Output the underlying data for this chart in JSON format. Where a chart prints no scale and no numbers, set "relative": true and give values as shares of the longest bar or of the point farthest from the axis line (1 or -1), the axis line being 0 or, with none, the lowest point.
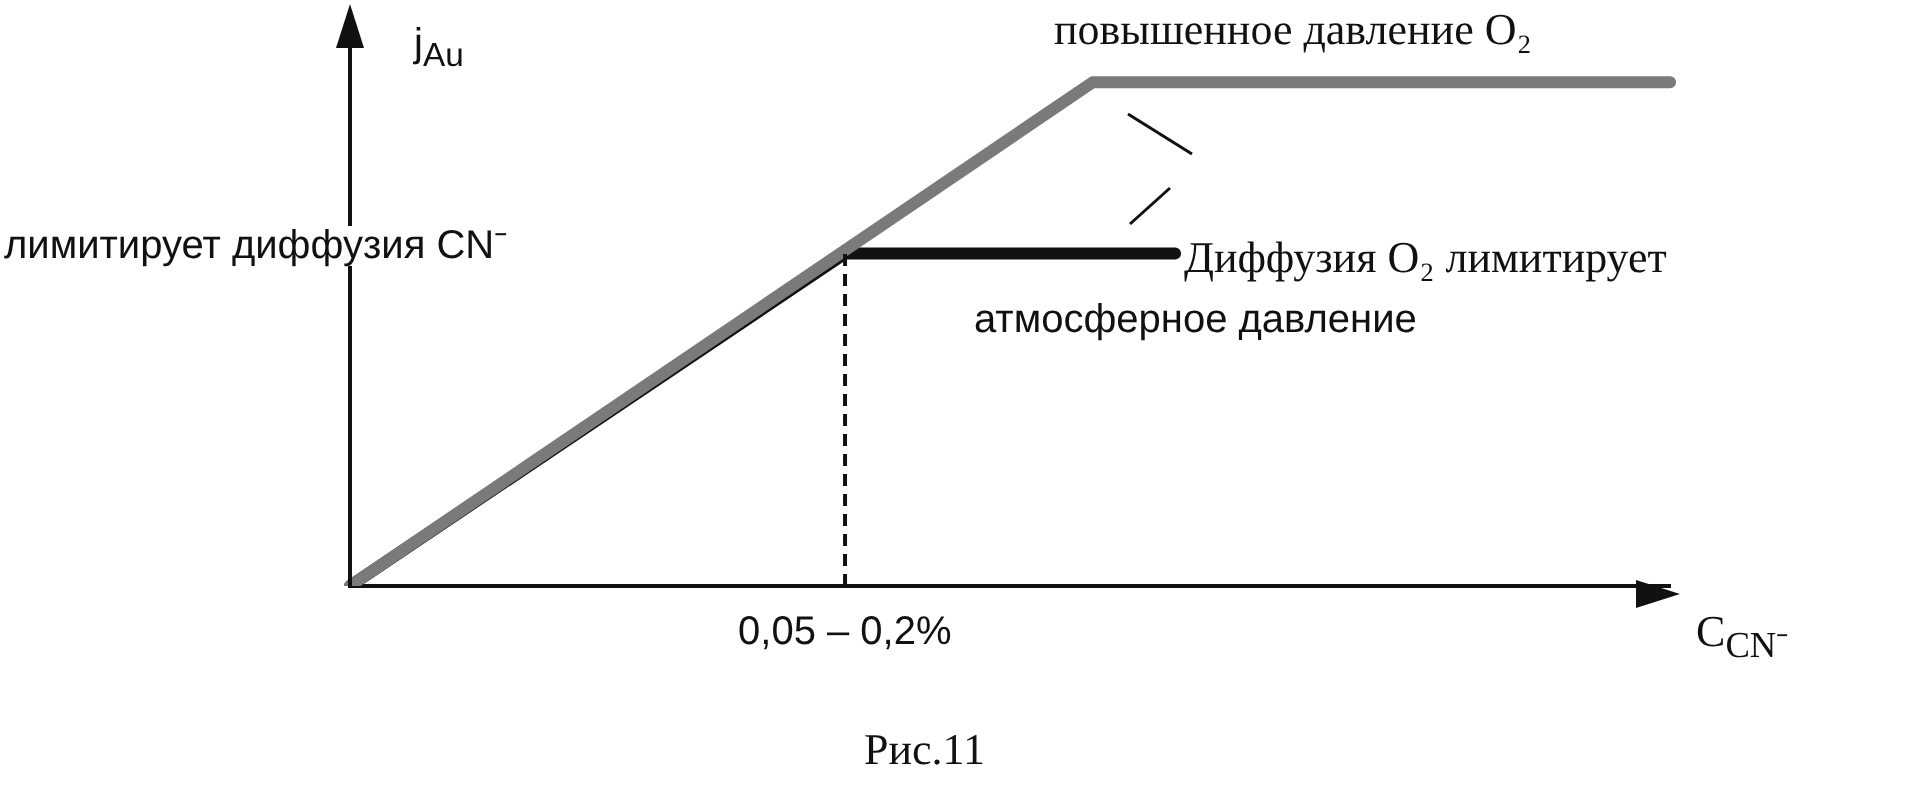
{
  "chart_data": {
    "type": "line",
    "relative": true,
    "xlabel": "C$_{CN⁻}$",
    "ylabel": "j$_{Au}$",
    "categories": [
      null,
      null,
      null,
      null,
      null,
      null,
      null,
      null,
      null,
      null,
      null,
      null,
      null,
      null,
      null,
      null,
      null,
      null,
      null,
      null,
      null,
      null,
      null,
      null,
      null,
      null,
      null,
      null,
      null,
      null,
      null,
      null,
      null
    ],
    "series": [
      {
        "color": "#7a7a7a",
        "values": [
          0,
          null,
          null,
          null,
          null,
          null,
          null,
          null,
          null,
          null,
          null,
          null,
          null,
          null,
          null,
          null,
          null,
          null,
          1,
          null,
          null,
          null,
          null,
          null,
          null,
          null,
          null,
          null,
          null,
          null,
          null,
          null,
          1
        ]
      },
      {
        "color": "#111111",
        "values": [
          0,
          null,
          null,
          null,
          null,
          null,
          null,
          null,
          null,
          null,
          null,
          null,
          0.66,
          null,
          null,
          null,
          null,
          null,
          null,
          null,
          0.66,
          null,
          null,
          null,
          null,
          null,
          null,
          null,
          null,
          null,
          null,
          null,
          null
        ]
      }
    ],
    "ref_lines": [
      {
        "axis": "x",
        "label": "0,05 – 0,2%",
        "line_style": "dashed",
        "color": "#111111"
      }
    ],
    "annotations": [
      "повышенное давление O₂",
      "лимитирует диффузия CN⁻",
      "Диффузия O₂ лимитирует",
      "атмосферное давление",
      "Рис.11"
    ],
    "marker": "none",
    "line_style": "solid"
  }
}
